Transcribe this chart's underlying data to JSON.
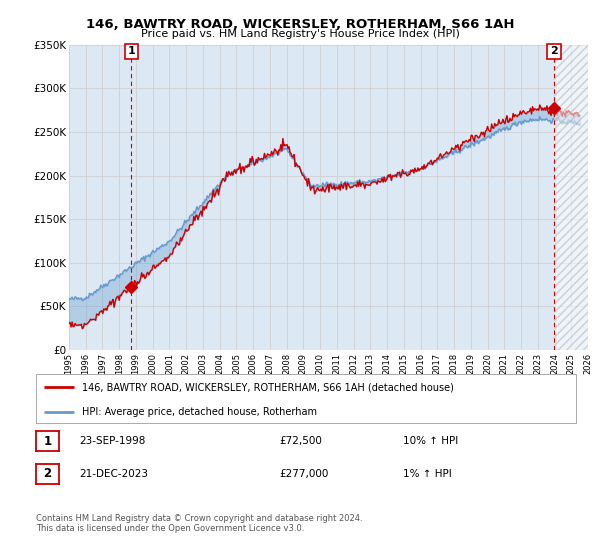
{
  "title": "146, BAWTRY ROAD, WICKERSLEY, ROTHERHAM, S66 1AH",
  "subtitle": "Price paid vs. HM Land Registry's House Price Index (HPI)",
  "legend_label_red": "146, BAWTRY ROAD, WICKERSLEY, ROTHERHAM, S66 1AH (detached house)",
  "legend_label_blue": "HPI: Average price, detached house, Rotherham",
  "transaction1_date": "23-SEP-1998",
  "transaction1_price": "£72,500",
  "transaction1_hpi": "10% ↑ HPI",
  "transaction2_date": "21-DEC-2023",
  "transaction2_price": "£277,000",
  "transaction2_hpi": "1% ↑ HPI",
  "footnote": "Contains HM Land Registry data © Crown copyright and database right 2024.\nThis data is licensed under the Open Government Licence v3.0.",
  "ylim": [
    0,
    350000
  ],
  "yticks": [
    0,
    50000,
    100000,
    150000,
    200000,
    250000,
    300000,
    350000
  ],
  "ytick_labels": [
    "£0",
    "£50K",
    "£100K",
    "£150K",
    "£200K",
    "£250K",
    "£300K",
    "£350K"
  ],
  "color_red": "#cc0000",
  "color_blue": "#6699cc",
  "color_grid": "#cccccc",
  "background_plot": "#dce9f5",
  "background_fig": "#ffffff",
  "marker1_x": 1998.73,
  "marker1_y": 72500,
  "marker2_x": 2023.97,
  "marker2_y": 277000,
  "xmin": 1995,
  "xmax": 2026
}
